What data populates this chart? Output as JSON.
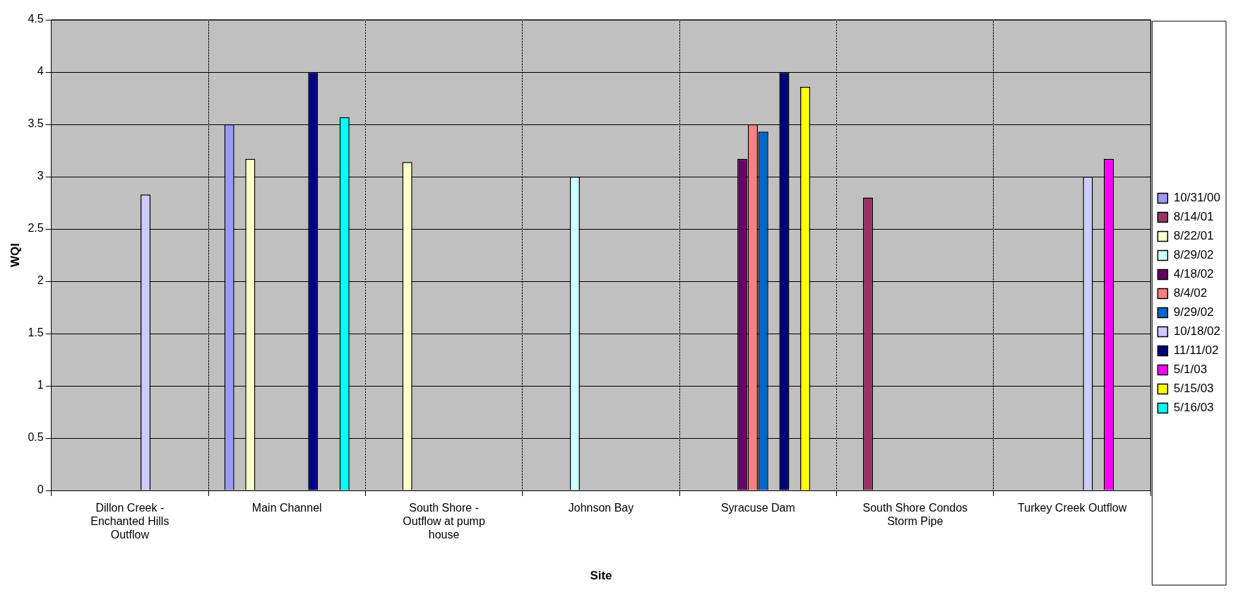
{
  "chart_data": {
    "type": "bar",
    "xlabel": "Site",
    "ylabel": "WQI",
    "categories": [
      "Dillon Creek - Enchanted Hills Outflow",
      "Main Channel",
      "South Shore - Outflow at pump house",
      "Johnson Bay",
      "Syracuse Dam",
      "South Shore Condos Storm Pipe",
      "Turkey Creek Outflow"
    ],
    "series": [
      {
        "name": "10/31/00",
        "color": "#9999ff",
        "values": [
          null,
          3.5,
          null,
          null,
          null,
          null,
          null
        ]
      },
      {
        "name": "8/14/01",
        "color": "#993366",
        "values": [
          null,
          null,
          null,
          null,
          null,
          2.8,
          null
        ]
      },
      {
        "name": "8/22/01",
        "color": "#ffffcc",
        "values": [
          null,
          3.17,
          3.14,
          null,
          null,
          null,
          null
        ]
      },
      {
        "name": "8/29/02",
        "color": "#ccffff",
        "values": [
          null,
          null,
          null,
          3.0,
          null,
          null,
          null
        ]
      },
      {
        "name": "4/18/02",
        "color": "#660066",
        "values": [
          null,
          null,
          null,
          null,
          3.17,
          null,
          null
        ]
      },
      {
        "name": "8/4/02",
        "color": "#ff8080",
        "values": [
          null,
          null,
          null,
          null,
          3.5,
          null,
          null
        ]
      },
      {
        "name": "9/29/02",
        "color": "#0066cc",
        "values": [
          null,
          null,
          null,
          null,
          3.43,
          null,
          null
        ]
      },
      {
        "name": "10/18/02",
        "color": "#ccccff",
        "values": [
          2.83,
          null,
          null,
          null,
          null,
          null,
          3.0
        ]
      },
      {
        "name": "11/11/02",
        "color": "#000080",
        "values": [
          null,
          4.0,
          null,
          null,
          4.0,
          null,
          null
        ]
      },
      {
        "name": "5/1/03",
        "color": "#ff00ff",
        "values": [
          null,
          null,
          null,
          null,
          null,
          null,
          3.17
        ]
      },
      {
        "name": "5/15/03",
        "color": "#ffff00",
        "values": [
          null,
          null,
          null,
          null,
          3.86,
          null,
          null
        ]
      },
      {
        "name": "5/16/03",
        "color": "#00ffff",
        "values": [
          null,
          3.57,
          null,
          null,
          null,
          null,
          null
        ]
      }
    ],
    "ylim": [
      0,
      4.5
    ],
    "yticks": [
      0,
      0.5,
      1,
      1.5,
      2,
      2.5,
      3,
      3.5,
      4,
      4.5
    ],
    "grid": true,
    "legend": "right"
  }
}
